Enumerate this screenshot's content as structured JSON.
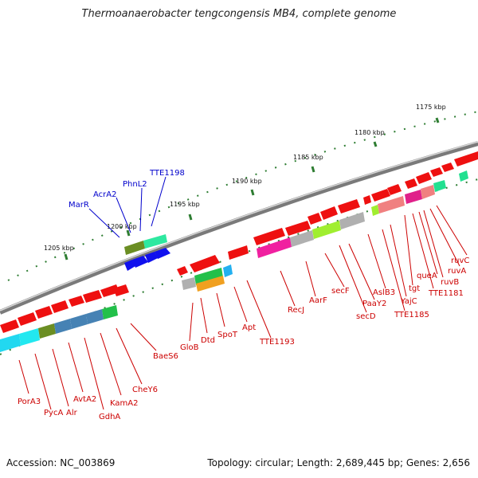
{
  "title": "Thermoanaerobacter tengcongensis MB4, complete genome",
  "accession": "Accession: NC_003869",
  "topology": "Topology: circular; Length: 2,689,445 bp; Genes: 2,656",
  "colors": {
    "backbone": "#7a7a7a",
    "tick": "#2e7d32",
    "label_red": "#cc0000",
    "label_blue": "#0000cc"
  },
  "kbp_labels": [
    "1175 kbp",
    "1180 kbp",
    "1185 kbp",
    "1190 kbp",
    "1195 kbp",
    "1200 kbp",
    "1205 kbp"
  ],
  "gene_labels_blue": [
    "TTE1198",
    "PhnL2",
    "AcrA2",
    "MarR"
  ],
  "gene_labels_red": [
    "ruvC",
    "ruvA",
    "queA",
    "ruvB",
    "tgt",
    "TTE1181",
    "YajC",
    "AslB3",
    "TTE1185",
    "PaaY2",
    "secF",
    "secD",
    "AarF",
    "RecJ",
    "TTE1193",
    "Apt",
    "SpoT",
    "Dtd",
    "GloB",
    "BaeS6",
    "CheY6",
    "KamA2",
    "GdhA",
    "AvtA2",
    "Alr",
    "PycA",
    "PorA3"
  ]
}
